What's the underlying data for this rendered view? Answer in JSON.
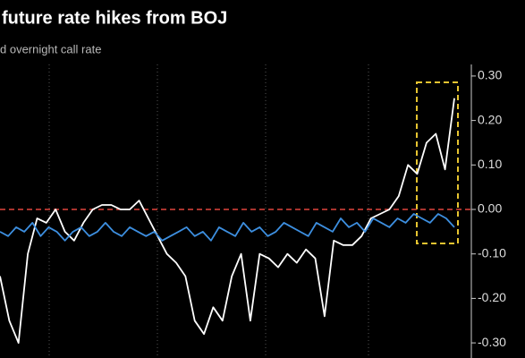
{
  "chart_data": {
    "type": "line",
    "title": "future rate hikes from BOJ",
    "subtitle": "d overnight call rate",
    "series": [
      {
        "color": "#ffffff",
        "values": [
          -0.15,
          -0.25,
          -0.3,
          -0.1,
          -0.02,
          -0.03,
          0.0,
          -0.05,
          -0.07,
          -0.03,
          0.0,
          0.01,
          0.01,
          0.0,
          0.0,
          0.02,
          -0.02,
          -0.06,
          -0.1,
          -0.12,
          -0.15,
          -0.25,
          -0.28,
          -0.22,
          -0.25,
          -0.15,
          -0.1,
          -0.25,
          -0.1,
          -0.11,
          -0.13,
          -0.1,
          -0.12,
          -0.09,
          -0.11,
          -0.24,
          -0.07,
          -0.08,
          -0.08,
          -0.06,
          -0.02,
          -0.01,
          0.0,
          0.03,
          0.1,
          0.08,
          0.15,
          0.17,
          0.09,
          0.25
        ]
      },
      {
        "color": "#3d8fe0",
        "values": [
          -0.05,
          -0.06,
          -0.04,
          -0.05,
          -0.03,
          -0.06,
          -0.04,
          -0.05,
          -0.07,
          -0.05,
          -0.04,
          -0.06,
          -0.05,
          -0.03,
          -0.05,
          -0.06,
          -0.04,
          -0.05,
          -0.06,
          -0.05,
          -0.07,
          -0.06,
          -0.05,
          -0.04,
          -0.06,
          -0.05,
          -0.07,
          -0.04,
          -0.05,
          -0.06,
          -0.03,
          -0.05,
          -0.04,
          -0.06,
          -0.05,
          -0.03,
          -0.04,
          -0.05,
          -0.06,
          -0.03,
          -0.04,
          -0.05,
          -0.02,
          -0.04,
          -0.03,
          -0.05,
          -0.02,
          -0.03,
          -0.04,
          -0.02,
          -0.03,
          -0.01,
          -0.02,
          -0.03,
          -0.01,
          -0.02,
          -0.04
        ]
      }
    ],
    "ylim": [
      -0.334,
      0.326
    ],
    "yticks": [
      {
        "value": -0.3,
        "label": "-0.30"
      },
      {
        "value": -0.2,
        "label": "-0.20"
      },
      {
        "value": -0.1,
        "label": "-0.10"
      },
      {
        "value": 0,
        "label": "0.00"
      },
      {
        "value": 0.1,
        "label": "0.10"
      },
      {
        "value": 0.2,
        "label": "0.20"
      },
      {
        "value": 0.3,
        "label": "0.30"
      }
    ],
    "zero_line_color": "#e0443c",
    "axis_side": "right"
  }
}
